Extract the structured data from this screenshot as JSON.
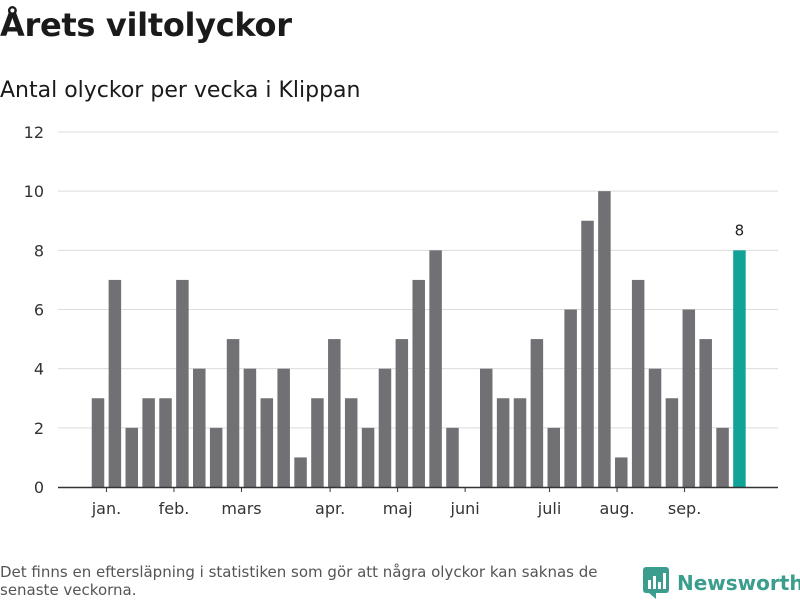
{
  "title": "Årets viltolyckor",
  "subtitle": "Antal olyckor per vecka i Klippan",
  "footer_note": "Det finns en eftersläpning i statistiken som gör att några olyckor kan saknas de senaste veckorna.",
  "brand": {
    "name": "Newsworthy",
    "icon": "bar-chart-logo-icon",
    "color": "#3a9d8d"
  },
  "colors": {
    "bar": "#717075",
    "highlight": "#11a398",
    "grid": "#dcdcdc",
    "axis": "#333333"
  },
  "chart_data": {
    "type": "bar",
    "title": "Årets viltolyckor",
    "subtitle": "Antal olyckor per vecka i Klippan",
    "x": [
      1,
      2,
      3,
      4,
      5,
      6,
      7,
      8,
      9,
      10,
      11,
      12,
      13,
      14,
      15,
      16,
      17,
      18,
      19,
      20,
      21,
      22,
      23,
      24,
      25,
      26,
      27,
      28,
      29,
      30,
      31,
      32,
      33,
      34,
      35,
      36,
      37,
      38,
      39
    ],
    "values": [
      3,
      7,
      2,
      3,
      3,
      7,
      4,
      2,
      5,
      4,
      3,
      4,
      1,
      3,
      5,
      3,
      2,
      4,
      5,
      7,
      8,
      2,
      0,
      4,
      3,
      3,
      5,
      2,
      6,
      9,
      10,
      1,
      7,
      4,
      3,
      6,
      5,
      2,
      8
    ],
    "highlight_index": 38,
    "highlight_label": "8",
    "month_ticks": [
      {
        "label": "jan.",
        "x": 1.5
      },
      {
        "label": "feb.",
        "x": 5.5
      },
      {
        "label": "mars",
        "x": 9.5
      },
      {
        "label": "apr.",
        "x": 14.75
      },
      {
        "label": "maj",
        "x": 18.75
      },
      {
        "label": "juni",
        "x": 22.75
      },
      {
        "label": "juli",
        "x": 27.75
      },
      {
        "label": "aug.",
        "x": 31.75
      },
      {
        "label": "sep.",
        "x": 35.75
      }
    ],
    "y_ticks": [
      0,
      2,
      4,
      6,
      8,
      10,
      12
    ],
    "ylim": [
      0,
      12
    ],
    "grid": true,
    "legend": "none"
  }
}
